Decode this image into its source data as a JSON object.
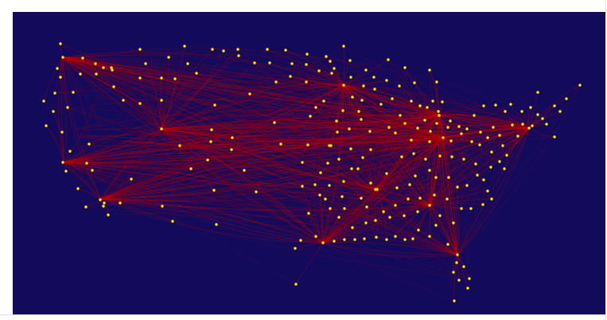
{
  "colors": {
    "background": "#140a5c",
    "edge": "#c00000",
    "airport": "#ffee00"
  }
}
